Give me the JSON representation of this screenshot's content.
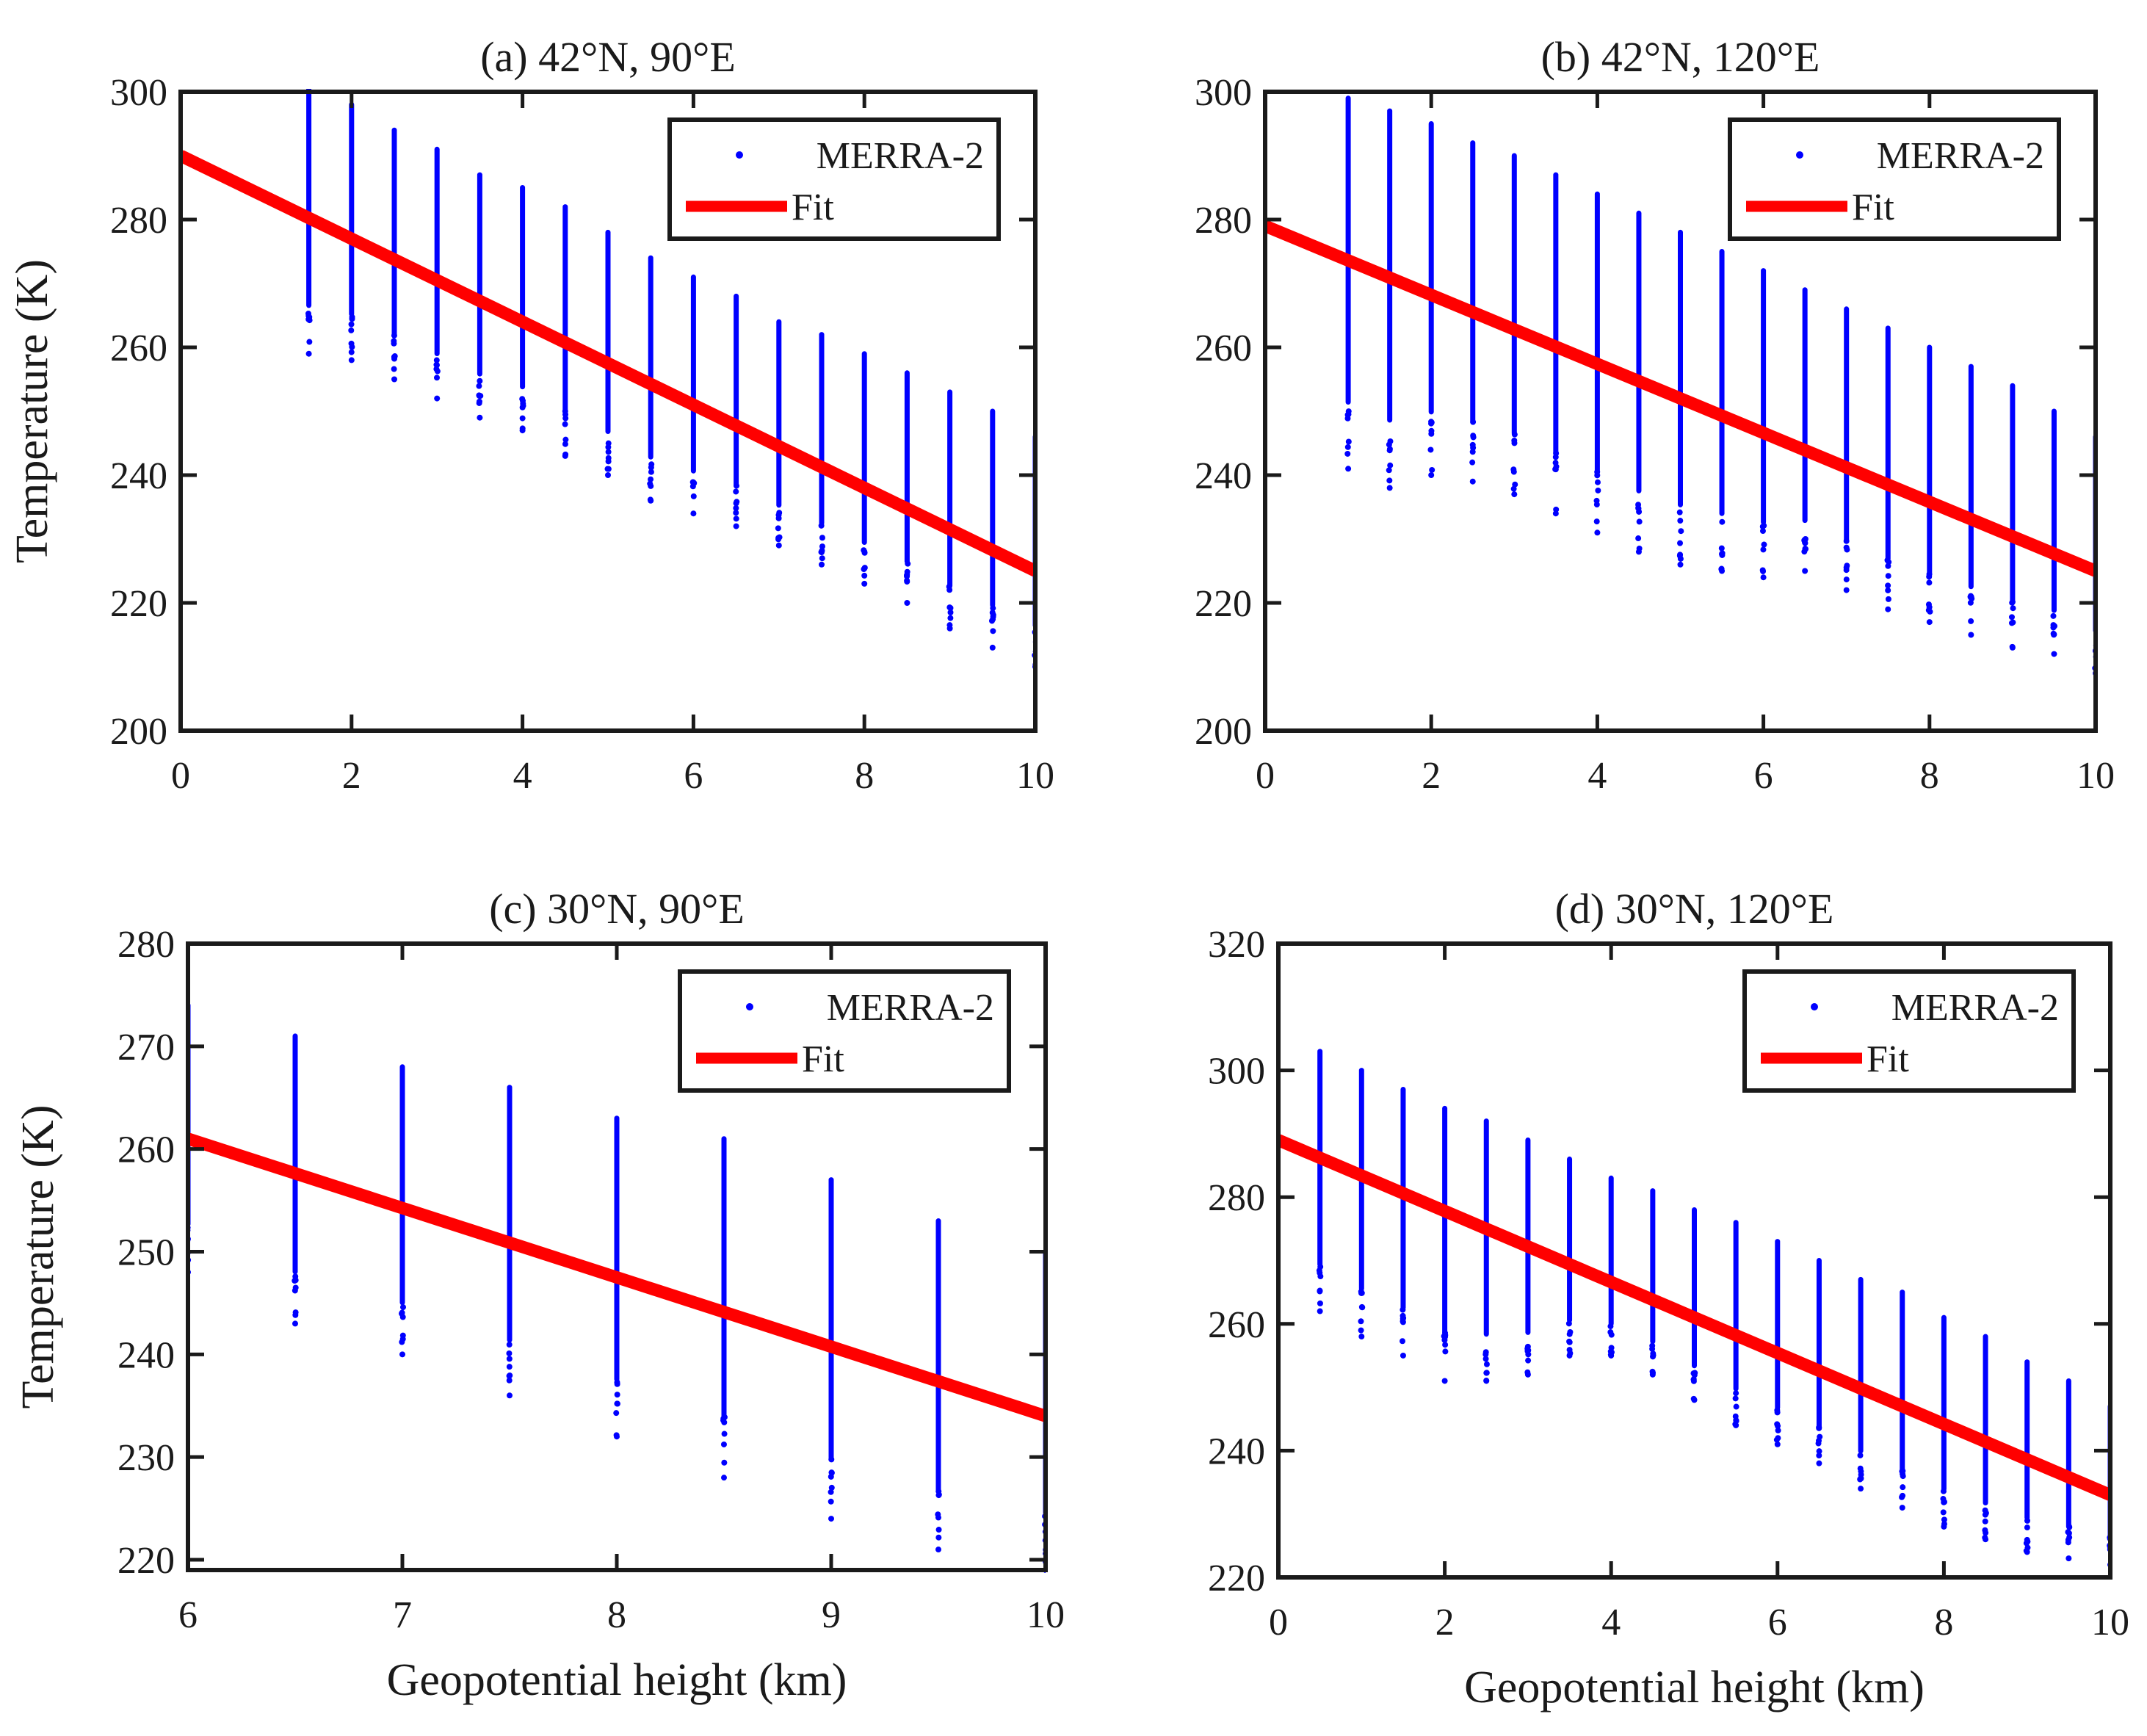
{
  "colors": {
    "scatter": "#0000ff",
    "fit": "#ff0000",
    "axis": "#1a1a1a"
  },
  "chart_data": [
    {
      "type": "scatter",
      "title": "(a) 42°N, 90°E",
      "xlabel": "",
      "ylabel": "Temperature (K)",
      "xlim": [
        0,
        10
      ],
      "ylim": [
        200,
        300
      ],
      "xticks": [
        "0",
        "2",
        "4",
        "6",
        "8",
        "10"
      ],
      "xtick_values": [
        0,
        2,
        4,
        6,
        8,
        10
      ],
      "yticks": [
        "200",
        "220",
        "240",
        "260",
        "280",
        "300"
      ],
      "ytick_values": [
        200,
        220,
        240,
        260,
        280,
        300
      ],
      "legend": {
        "position": "top-right",
        "entries": [
          "MERRA-2",
          "Fit"
        ]
      },
      "series": [
        {
          "name": "MERRA-2",
          "kind": "scatter",
          "x": [
            1.5,
            2,
            2.5,
            3,
            3.5,
            4,
            4.5,
            5,
            5.5,
            6,
            6.5,
            7,
            7.5,
            8,
            8.5,
            9,
            9.5,
            10
          ],
          "ymin": [
            259,
            258,
            255,
            252,
            249,
            247,
            243,
            240,
            236,
            234,
            232,
            229,
            226,
            223,
            220,
            216,
            213,
            210
          ],
          "ymax": [
            301,
            298,
            294,
            291,
            287,
            285,
            282,
            278,
            274,
            271,
            268,
            264,
            262,
            259,
            256,
            253,
            250,
            246
          ]
        },
        {
          "name": "Fit",
          "kind": "line",
          "x": [
            0,
            10
          ],
          "y": [
            290,
            225
          ]
        }
      ]
    },
    {
      "type": "scatter",
      "title": "(b) 42°N, 120°E",
      "xlabel": "",
      "ylabel": "",
      "xlim": [
        0,
        10
      ],
      "ylim": [
        200,
        300
      ],
      "xticks": [
        "0",
        "2",
        "4",
        "6",
        "8",
        "10"
      ],
      "xtick_values": [
        0,
        2,
        4,
        6,
        8,
        10
      ],
      "yticks": [
        "200",
        "220",
        "240",
        "260",
        "280",
        "300"
      ],
      "ytick_values": [
        200,
        220,
        240,
        260,
        280,
        300
      ],
      "legend": {
        "position": "top-right",
        "entries": [
          "MERRA-2",
          "Fit"
        ]
      },
      "series": [
        {
          "name": "MERRA-2",
          "kind": "scatter",
          "x": [
            1,
            1.5,
            2,
            2.5,
            3,
            3.5,
            4,
            4.5,
            5,
            5.5,
            6,
            6.5,
            7,
            7.5,
            8,
            8.5,
            9,
            9.5,
            10
          ],
          "ymin": [
            241,
            238,
            240,
            239,
            237,
            234,
            231,
            228,
            226,
            225,
            224,
            225,
            222,
            219,
            217,
            215,
            213,
            212,
            209
          ],
          "ymax": [
            299,
            297,
            295,
            292,
            290,
            287,
            284,
            281,
            278,
            275,
            272,
            269,
            266,
            263,
            260,
            257,
            254,
            250,
            246
          ]
        },
        {
          "name": "Fit",
          "kind": "line",
          "x": [
            0,
            10
          ],
          "y": [
            279,
            225
          ]
        }
      ]
    },
    {
      "type": "scatter",
      "title": "(c) 30°N, 90°E",
      "xlabel": "Geopotential height (km)",
      "ylabel": "Temperature (K)",
      "xlim": [
        6,
        10
      ],
      "ylim": [
        219,
        280
      ],
      "xticks": [
        "6",
        "7",
        "8",
        "9",
        "10"
      ],
      "xtick_values": [
        6,
        7,
        8,
        9,
        10
      ],
      "yticks": [
        "220",
        "230",
        "240",
        "250",
        "260",
        "270",
        "280"
      ],
      "ytick_values": [
        220,
        230,
        240,
        250,
        260,
        270,
        280
      ],
      "legend": {
        "position": "top-right",
        "entries": [
          "MERRA-2",
          "Fit"
        ]
      },
      "series": [
        {
          "name": "MERRA-2",
          "kind": "scatter",
          "x": [
            6,
            6.5,
            7,
            7.5,
            8,
            8.5,
            9,
            9.5,
            10
          ],
          "ymin": [
            248,
            243,
            240,
            236,
            232,
            228,
            224,
            221,
            219
          ],
          "ymax": [
            274,
            271,
            268,
            266,
            263,
            261,
            257,
            253,
            250
          ]
        },
        {
          "name": "Fit",
          "kind": "line",
          "x": [
            6,
            10
          ],
          "y": [
            261,
            234
          ]
        }
      ]
    },
    {
      "type": "scatter",
      "title": "(d) 30°N, 120°E",
      "xlabel": "Geopotential height (km)",
      "ylabel": "",
      "xlim": [
        0,
        10
      ],
      "ylim": [
        220,
        320
      ],
      "xticks": [
        "0",
        "2",
        "4",
        "6",
        "8",
        "10"
      ],
      "xtick_values": [
        0,
        2,
        4,
        6,
        8,
        10
      ],
      "yticks": [
        "220",
        "240",
        "260",
        "280",
        "300",
        "320"
      ],
      "ytick_values": [
        220,
        240,
        260,
        280,
        300,
        320
      ],
      "legend": {
        "position": "top-right",
        "entries": [
          "MERRA-2",
          "Fit"
        ]
      },
      "series": [
        {
          "name": "MERRA-2",
          "kind": "scatter",
          "x": [
            0.5,
            1,
            1.5,
            2,
            2.5,
            3,
            3.5,
            4,
            4.5,
            5,
            5.5,
            6,
            6.5,
            7,
            7.5,
            8,
            8.5,
            9,
            9.5,
            10
          ],
          "ymin": [
            262,
            258,
            255,
            251,
            251,
            252,
            255,
            255,
            252,
            248,
            244,
            241,
            238,
            234,
            231,
            228,
            226,
            224,
            223,
            222
          ],
          "ymax": [
            303,
            300,
            297,
            294,
            292,
            289,
            286,
            283,
            281,
            278,
            276,
            273,
            270,
            267,
            265,
            261,
            258,
            254,
            251,
            247
          ]
        },
        {
          "name": "Fit",
          "kind": "line",
          "x": [
            0,
            10
          ],
          "y": [
            289,
            233
          ]
        }
      ]
    }
  ]
}
